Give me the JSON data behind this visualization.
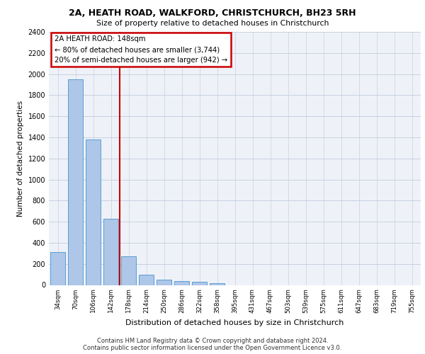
{
  "title_line1": "2A, HEATH ROAD, WALKFORD, CHRISTCHURCH, BH23 5RH",
  "title_line2": "Size of property relative to detached houses in Christchurch",
  "xlabel": "Distribution of detached houses by size in Christchurch",
  "ylabel": "Number of detached properties",
  "footnote1": "Contains HM Land Registry data © Crown copyright and database right 2024.",
  "footnote2": "Contains public sector information licensed under the Open Government Licence v3.0.",
  "bar_labels": [
    "34sqm",
    "70sqm",
    "106sqm",
    "142sqm",
    "178sqm",
    "214sqm",
    "250sqm",
    "286sqm",
    "322sqm",
    "358sqm",
    "395sqm",
    "431sqm",
    "467sqm",
    "503sqm",
    "539sqm",
    "575sqm",
    "611sqm",
    "647sqm",
    "683sqm",
    "719sqm",
    "755sqm"
  ],
  "bar_values": [
    310,
    1950,
    1380,
    630,
    275,
    100,
    48,
    35,
    28,
    20,
    0,
    0,
    0,
    0,
    0,
    0,
    0,
    0,
    0,
    0,
    0
  ],
  "bar_color": "#aec6e8",
  "bar_edge_color": "#5a9fd4",
  "vline_x": 3.5,
  "vline_color": "#cc0000",
  "annotation_title": "2A HEATH ROAD: 148sqm",
  "annotation_line2": "← 80% of detached houses are smaller (3,744)",
  "annotation_line3": "20% of semi-detached houses are larger (942) →",
  "annotation_box_color": "#cc0000",
  "ylim": [
    0,
    2400
  ],
  "yticks": [
    0,
    200,
    400,
    600,
    800,
    1000,
    1200,
    1400,
    1600,
    1800,
    2000,
    2200,
    2400
  ],
  "grid_color": "#c8cfe0",
  "bg_color": "#eef2f8"
}
